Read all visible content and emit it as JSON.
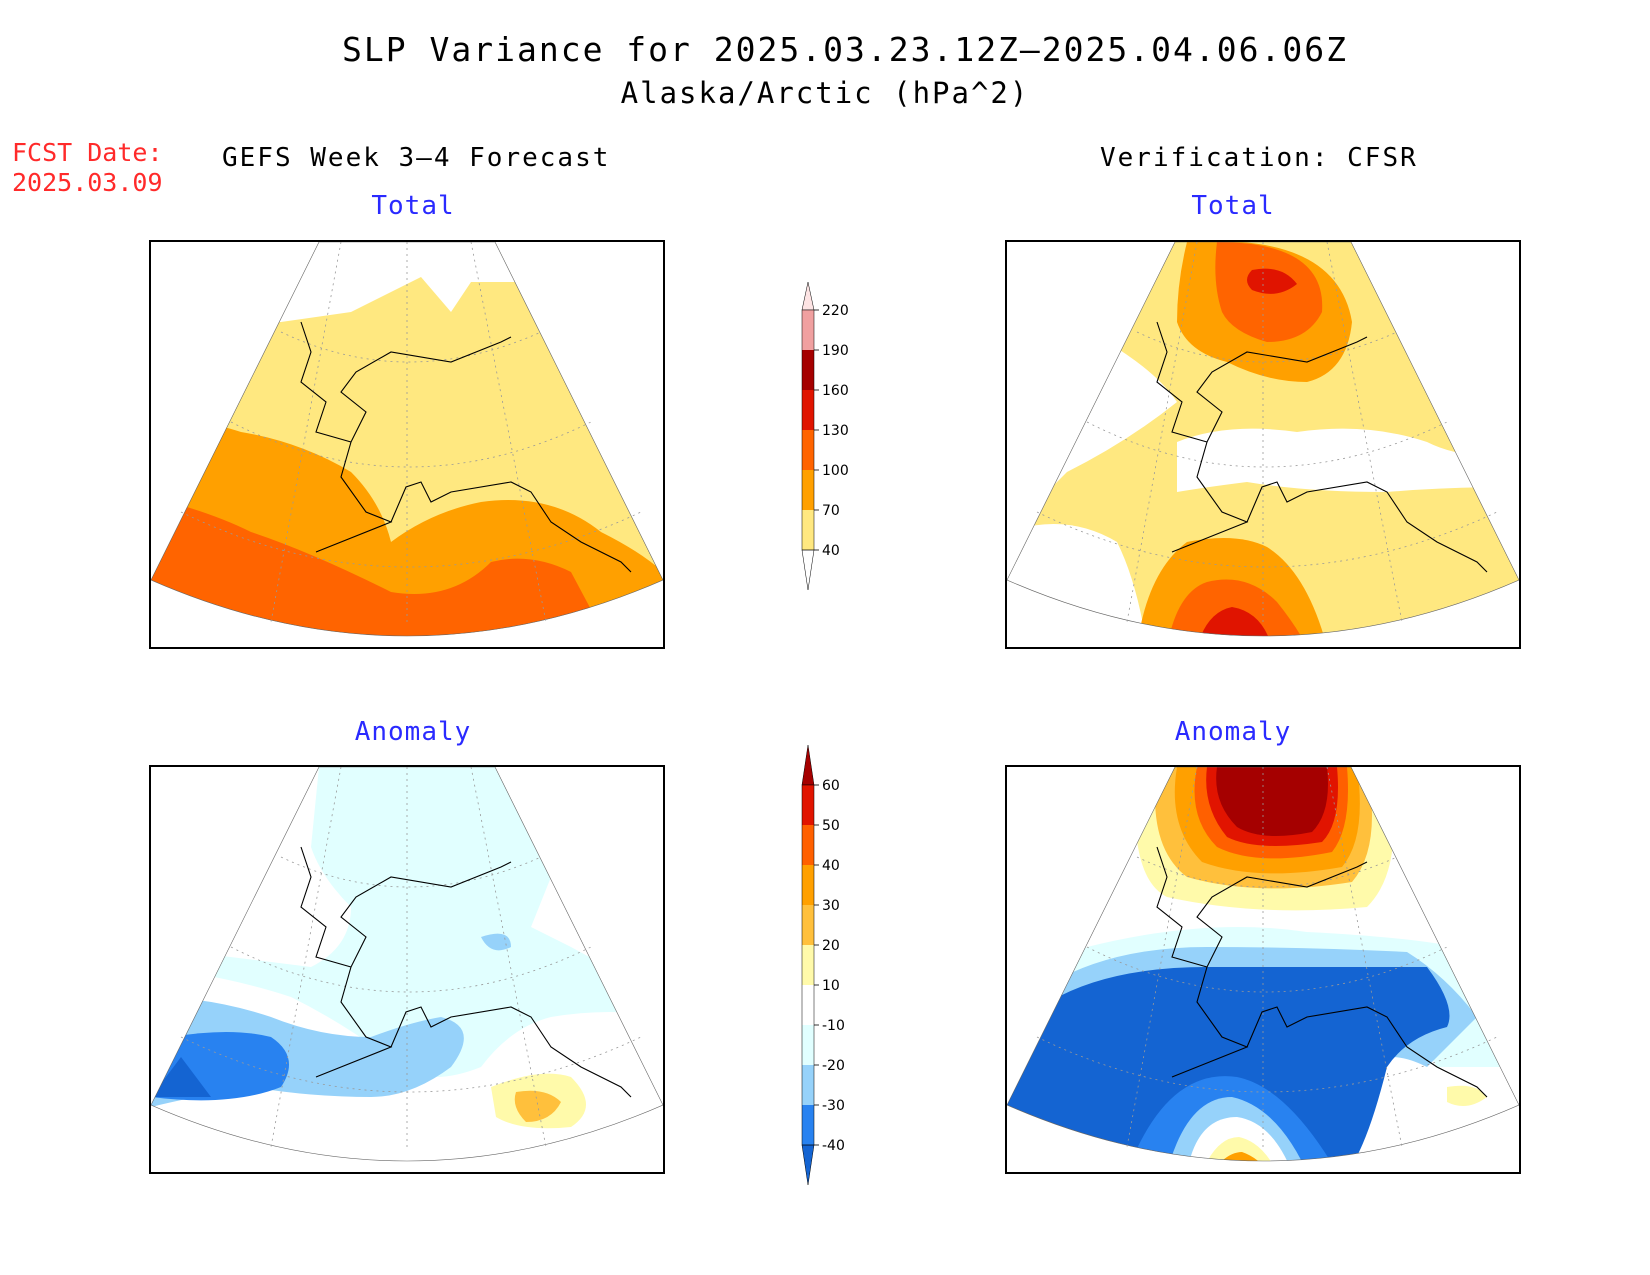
{
  "header": {
    "title": "SLP Variance for 2025.03.23.12Z–2025.04.06.06Z",
    "subtitle": "Alaska/Arctic (hPa^2)",
    "fcst_label": "FCST Date:",
    "fcst_date": "2025.03.09"
  },
  "columns": {
    "left": "GEFS Week 3–4 Forecast",
    "right": "Verification: CFSR"
  },
  "panels": {
    "forecast_total": "Total",
    "verification_total": "Total",
    "forecast_anomaly": "Anomaly",
    "verification_anomaly": "Anomaly"
  },
  "colorbar_total": {
    "levels": [
      "40",
      "70",
      "100",
      "130",
      "160",
      "190",
      "220"
    ],
    "colors": [
      "#ffe880",
      "#ffa000",
      "#ff6400",
      "#e01400",
      "#a50000",
      "#f0a0a0",
      "#fde4e4"
    ]
  },
  "colorbar_anomaly": {
    "levels": [
      "-40",
      "-30",
      "-20",
      "-10",
      "10",
      "20",
      "30",
      "40",
      "50",
      "60"
    ],
    "colors": [
      "#1464d2",
      "#2882f0",
      "#96d2fa",
      "#e1ffff",
      "#ffffff",
      "#fffaaa",
      "#ffc03c",
      "#ffa000",
      "#ff6000",
      "#e11400",
      "#a50000"
    ]
  }
}
